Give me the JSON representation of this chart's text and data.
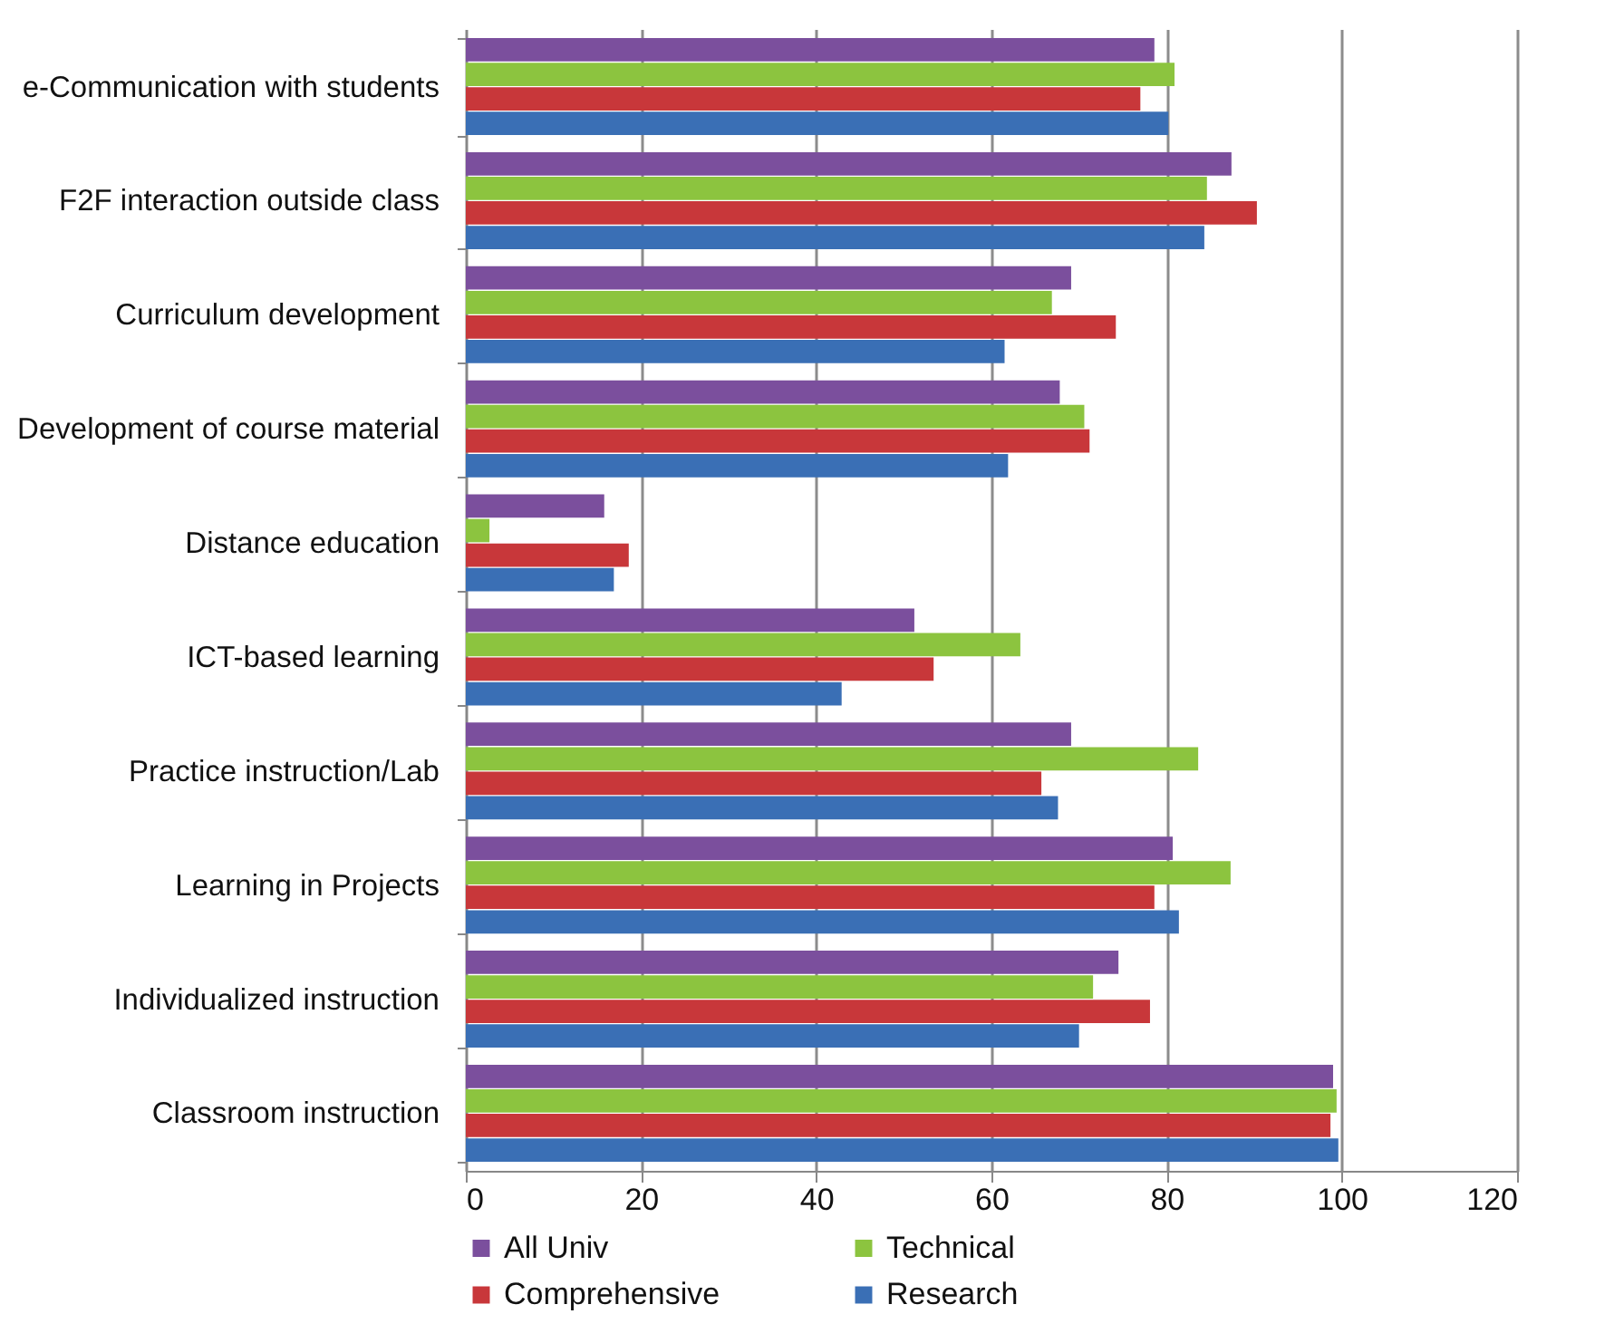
{
  "chart_data": {
    "type": "bar",
    "orientation": "horizontal",
    "categories": [
      "e-Communication with students",
      "F2F interaction outside class",
      "Curriculum development",
      "Development of course  material",
      "Distance education",
      "ICT-based learning",
      "Practice instruction/Lab",
      "Learning in Projects",
      "Individualized instruction",
      "Classroom instruction"
    ],
    "series": [
      {
        "name": "All Univ",
        "color": "#7b4f9d",
        "values": [
          78.6,
          87.4,
          69.1,
          67.8,
          15.8,
          51.2,
          69.1,
          80.7,
          74.5,
          99.0
        ]
      },
      {
        "name": "Technical",
        "color": "#8cc43f",
        "values": [
          80.9,
          84.6,
          66.9,
          70.6,
          2.7,
          63.3,
          83.6,
          87.3,
          71.6,
          99.4
        ]
      },
      {
        "name": "Comprehensive",
        "color": "#c8373a",
        "values": [
          77.0,
          90.3,
          74.2,
          71.2,
          18.6,
          53.4,
          65.7,
          78.6,
          78.1,
          98.7
        ]
      },
      {
        "name": "Research",
        "color": "#3a6fb5",
        "values": [
          80.2,
          84.3,
          61.5,
          61.9,
          16.9,
          42.9,
          67.6,
          81.4,
          70.0,
          99.6
        ]
      }
    ],
    "xlim": [
      0,
      120
    ],
    "xticks": [
      0,
      20,
      40,
      60,
      80,
      100,
      120
    ],
    "grid": "x",
    "legend": "bottom"
  }
}
